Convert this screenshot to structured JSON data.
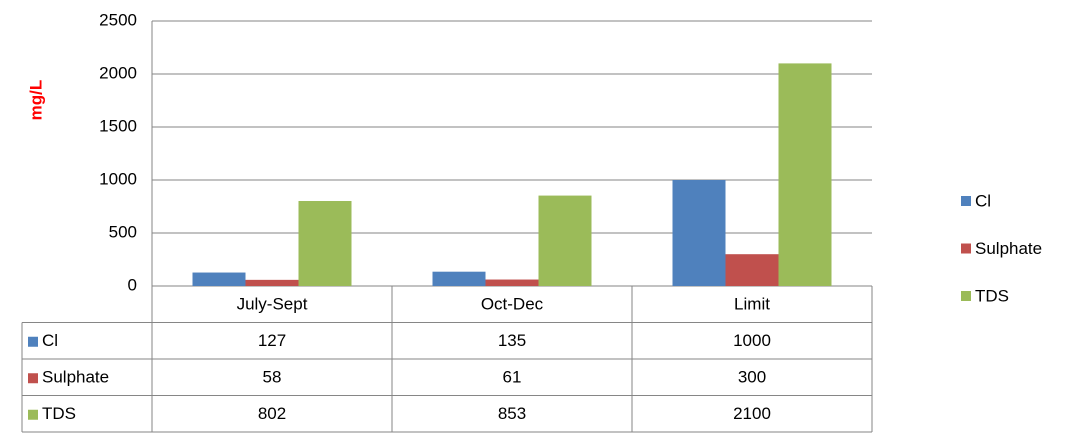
{
  "chart_data": {
    "type": "bar",
    "y_axis_label": "mg/L",
    "categories": [
      "July-Sept",
      "Oct-Dec",
      "Limit"
    ],
    "series": [
      {
        "name": "Cl",
        "color": "#4f81bd",
        "values": [
          127,
          135,
          1000
        ]
      },
      {
        "name": "Sulphate",
        "color": "#c0504d",
        "values": [
          58,
          61,
          300
        ]
      },
      {
        "name": "TDS",
        "color": "#9bbb59",
        "values": [
          802,
          853,
          2100
        ]
      }
    ],
    "ylim": [
      0,
      2500
    ],
    "yticks": [
      0,
      500,
      1000,
      1500,
      2000,
      2500
    ],
    "grid": true,
    "legend": "right",
    "data_table": true
  }
}
